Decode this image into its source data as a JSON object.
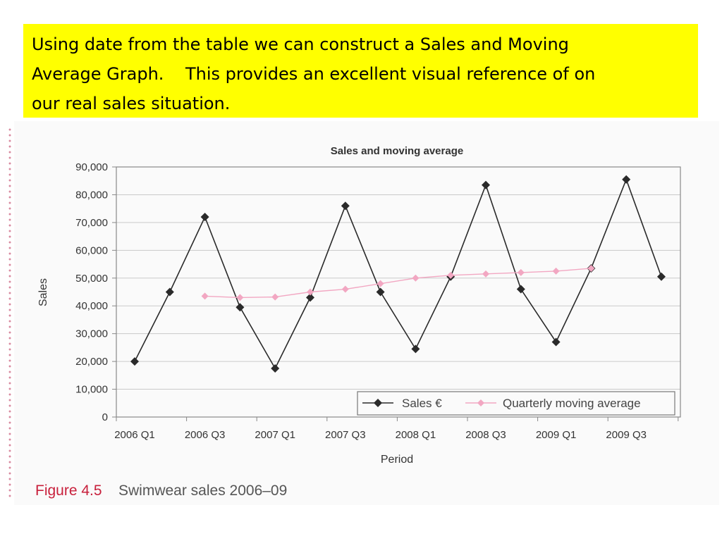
{
  "note": {
    "line1": "Using date from the table we can construct a Sales and Moving",
    "line2": "Average Graph.    This provides an excellent visual reference of on",
    "line3": "our real sales situation."
  },
  "figure": {
    "number": "Figure 4.5",
    "caption": "Swimwear sales 2006–09"
  },
  "colors": {
    "note_bg": "#ffff00",
    "sales": "#2a2a2a",
    "moving_avg": "#f2a7c2",
    "figure_number": "#c8203c"
  },
  "chart_data": {
    "type": "line",
    "title": "Sales and moving average",
    "xlabel": "Period",
    "ylabel": "Sales",
    "ylim": [
      0,
      90000
    ],
    "yticks": [
      "0",
      "10,000",
      "20,000",
      "30,000",
      "40,000",
      "50,000",
      "60,000",
      "70,000",
      "80,000",
      "90,000"
    ],
    "x": [
      "2006 Q1",
      "2006 Q2",
      "2006 Q3",
      "2006 Q4",
      "2007 Q1",
      "2007 Q2",
      "2007 Q3",
      "2007 Q4",
      "2008 Q1",
      "2008 Q2",
      "2008 Q3",
      "2008 Q4",
      "2009 Q1",
      "2009 Q2",
      "2009 Q3",
      "2009 Q4"
    ],
    "xtick_labels": [
      "2006 Q1",
      "2006 Q3",
      "2007 Q1",
      "2007 Q3",
      "2008 Q1",
      "2008 Q3",
      "2009  Q1",
      "2009 Q3"
    ],
    "grid": true,
    "legend_position": "bottom-right",
    "series": [
      {
        "name": "Sales €",
        "values": [
          20000,
          45000,
          72000,
          39500,
          17500,
          43000,
          76000,
          45000,
          24500,
          50500,
          83500,
          46000,
          27000,
          53500,
          85500,
          50500
        ]
      },
      {
        "name": "Quarterly moving average",
        "values": [
          null,
          null,
          43500,
          43000,
          43200,
          45000,
          46000,
          48000,
          50000,
          51000,
          51500,
          52000,
          52500,
          53500,
          null,
          null
        ]
      }
    ]
  }
}
